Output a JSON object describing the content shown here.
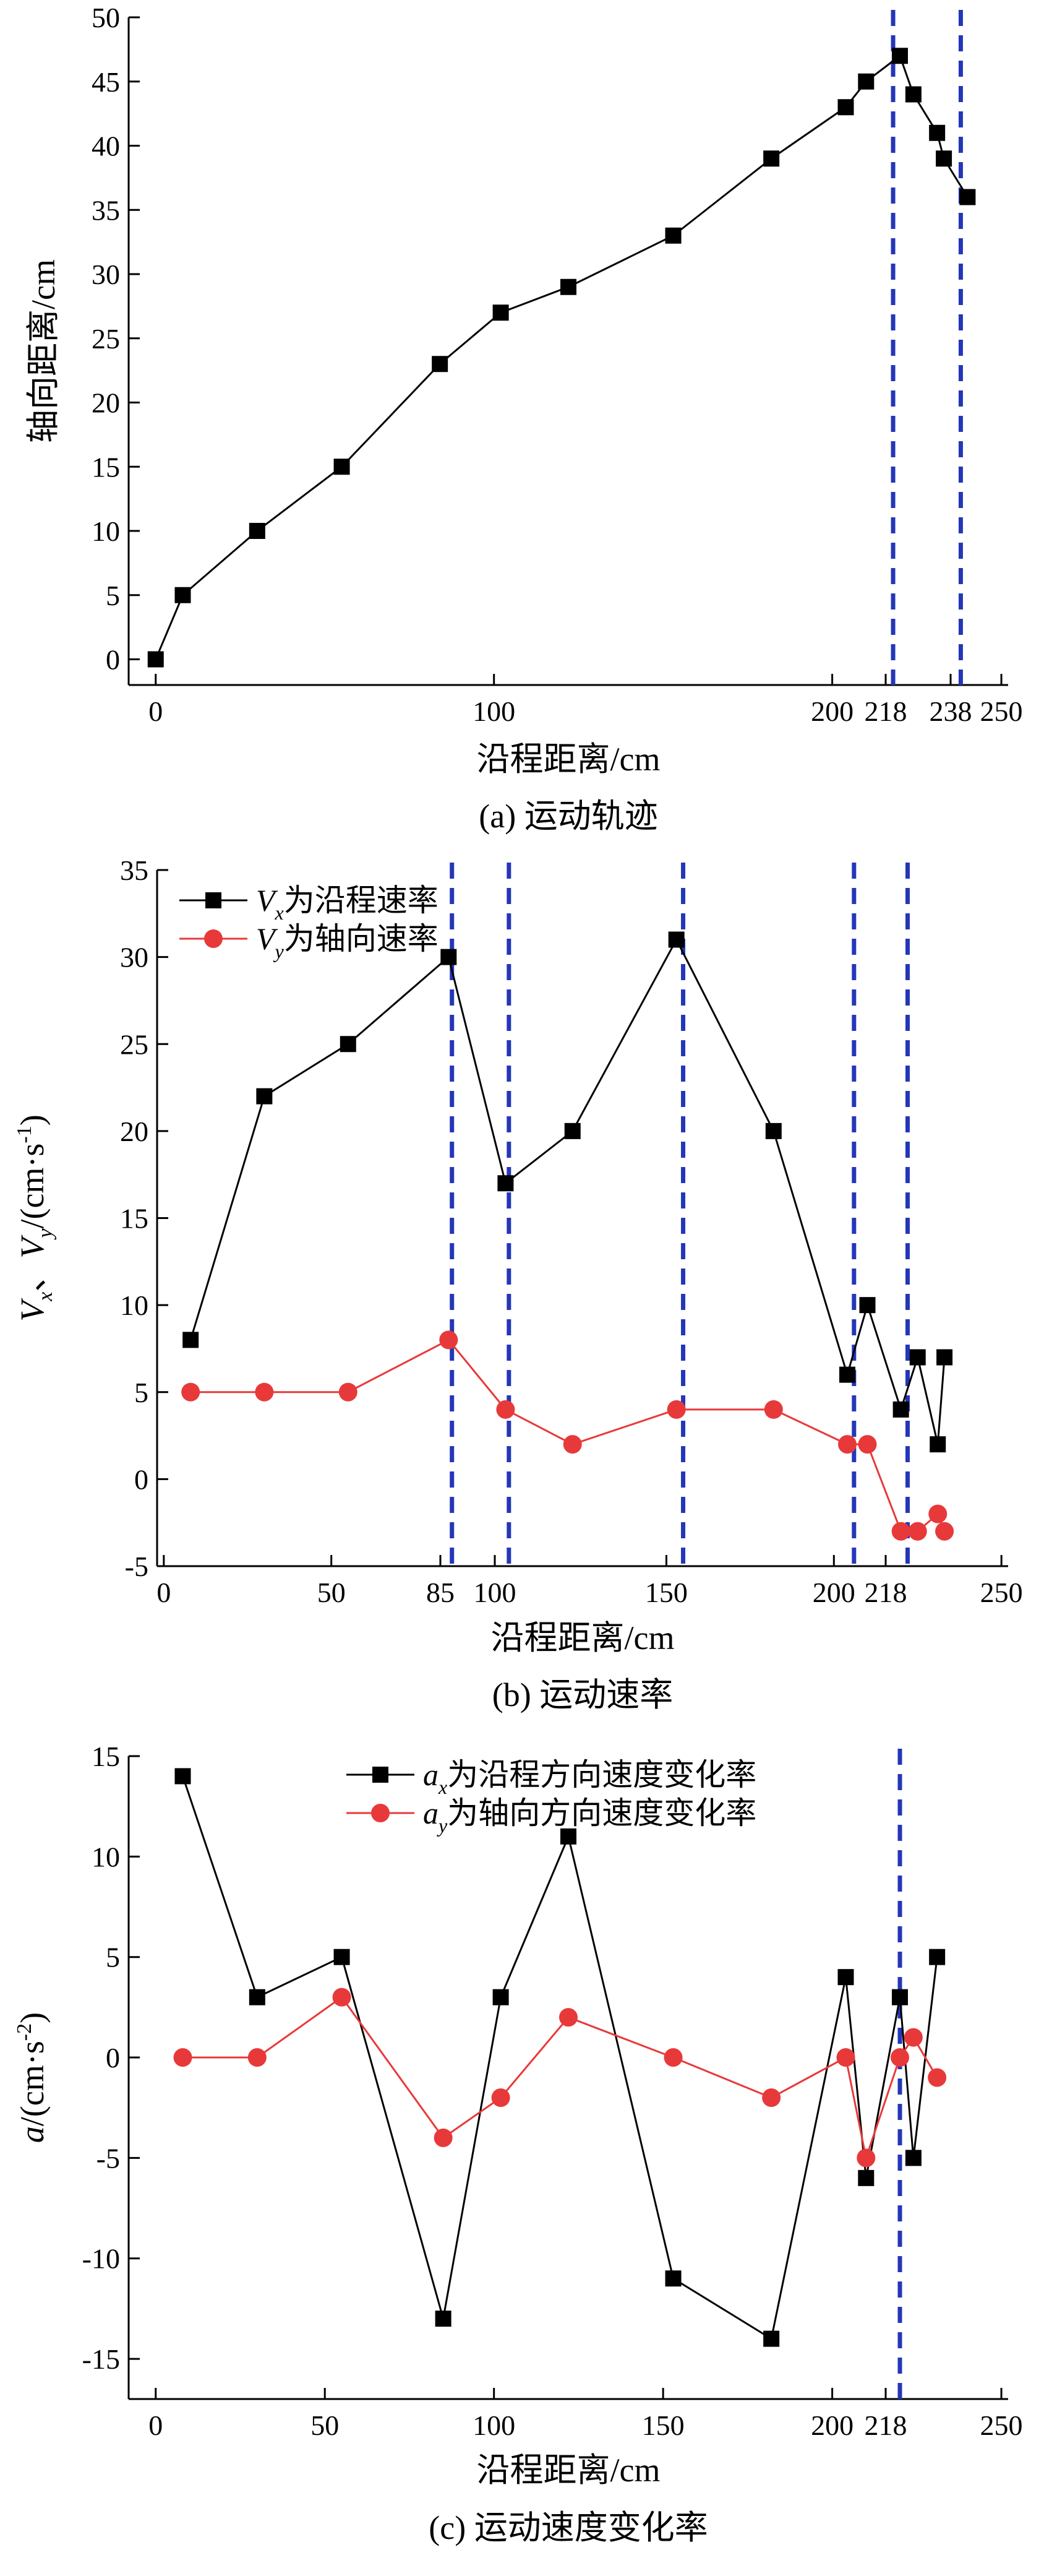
{
  "chart_data": [
    {
      "type": "line",
      "caption": "(a) 运动轨迹",
      "xlabel": "沿程距离/cm",
      "ylabel": "轴向距离/cm",
      "xlim": [
        -8,
        252
      ],
      "ylim": [
        -2,
        50
      ],
      "xticks": [
        0,
        100,
        200,
        218,
        238,
        250
      ],
      "yticks": [
        0,
        5,
        10,
        15,
        20,
        25,
        30,
        35,
        40,
        45,
        50
      ],
      "vlines": [
        218,
        238
      ],
      "series": [
        {
          "marker": "square",
          "color": "#000000",
          "x": [
            0,
            8,
            30,
            55,
            84,
            102,
            122,
            153,
            182,
            204,
            210,
            220,
            224,
            231,
            233,
            240
          ],
          "y": [
            0,
            5,
            10,
            15,
            23,
            27,
            29,
            33,
            39,
            43,
            45,
            47,
            44,
            41,
            39,
            36
          ]
        }
      ]
    },
    {
      "type": "line",
      "caption": "(b) 运动速率",
      "xlabel": "沿程距离/cm",
      "ylabel": "Vx、Vy/(cm·s-1)",
      "ylabel_parts": {
        "v1": "V",
        "s1": "x",
        "sep": "、",
        "v2": "V",
        "s2": "y",
        "unit": "/(cm·s",
        "exp": "-1",
        "close": ")"
      },
      "xlim": [
        -2,
        252
      ],
      "ylim": [
        -5,
        35
      ],
      "xticks": [
        0,
        50,
        85,
        100,
        150,
        200,
        218,
        250
      ],
      "yticks": [
        -5,
        0,
        5,
        10,
        15,
        20,
        25,
        30,
        35
      ],
      "vlines": [
        86,
        103,
        155,
        206,
        222
      ],
      "legend": {
        "position": "top-left"
      },
      "series": [
        {
          "legend_parts": {
            "var": "V",
            "sub": "x",
            "text": "为沿程速率"
          },
          "marker": "square",
          "color": "#000000",
          "x": [
            8,
            30,
            55,
            85,
            102,
            122,
            153,
            182,
            204,
            210,
            220,
            225,
            231,
            233
          ],
          "y": [
            8,
            22,
            25,
            30,
            17,
            20,
            31,
            20,
            6,
            10,
            4,
            7,
            2,
            7
          ]
        },
        {
          "legend_parts": {
            "var": "V",
            "sub": "y",
            "text": "为轴向速率"
          },
          "marker": "circle",
          "color": "#e8393a",
          "x": [
            8,
            30,
            55,
            85,
            102,
            122,
            153,
            182,
            204,
            210,
            220,
            225,
            231,
            233
          ],
          "y": [
            5,
            5,
            5,
            8,
            4,
            2,
            4,
            4,
            2,
            2,
            -3,
            -3,
            -2,
            -3
          ]
        }
      ]
    },
    {
      "type": "line",
      "caption": "(c) 运动速度变化率",
      "xlabel": "沿程距离/cm",
      "ylabel": "a/(cm·s-2)",
      "ylabel_parts": {
        "v1": "a",
        "unit": "/(cm·s",
        "exp": "-2",
        "close": ")"
      },
      "xlim": [
        -8,
        252
      ],
      "ylim": [
        -17,
        15
      ],
      "xticks": [
        0,
        50,
        100,
        150,
        200,
        218,
        250
      ],
      "yticks": [
        -15,
        -10,
        -5,
        0,
        5,
        10,
        15
      ],
      "vlines": [
        220
      ],
      "legend": {
        "position": "top-right"
      },
      "series": [
        {
          "legend_parts": {
            "var": "a",
            "sub": "x",
            "text": "为沿程方向速度变化率"
          },
          "marker": "square",
          "color": "#000000",
          "x": [
            8,
            30,
            55,
            85,
            102,
            122,
            153,
            182,
            204,
            210,
            220,
            224,
            231
          ],
          "y": [
            14,
            3,
            5,
            -13,
            3,
            11,
            -11,
            -14,
            4,
            -6,
            3,
            -5,
            5
          ]
        },
        {
          "legend_parts": {
            "var": "a",
            "sub": "y",
            "text": "为轴向方向速度变化率"
          },
          "marker": "circle",
          "color": "#e8393a",
          "x": [
            8,
            30,
            55,
            85,
            102,
            122,
            153,
            182,
            204,
            210,
            220,
            224,
            231
          ],
          "y": [
            0,
            0,
            3,
            -4,
            -2,
            2,
            0,
            -2,
            0,
            -5,
            0,
            1,
            -1
          ]
        }
      ]
    }
  ]
}
